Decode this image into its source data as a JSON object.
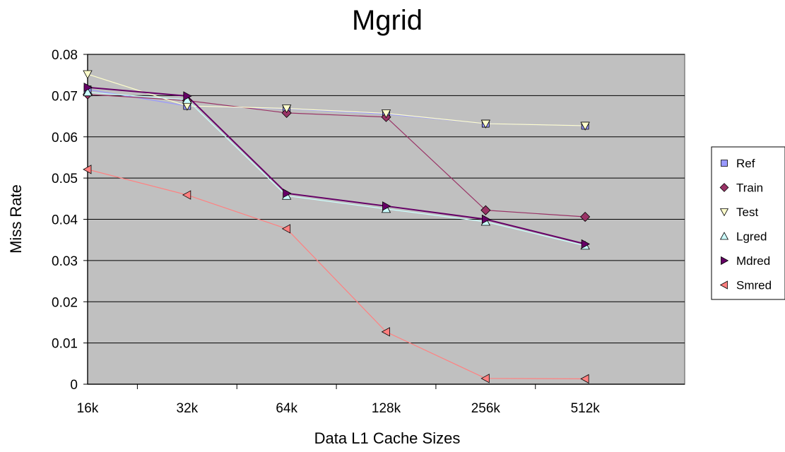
{
  "chart_data": {
    "type": "line",
    "title": "Mgrid",
    "xlabel": "Data L1 Cache Sizes",
    "ylabel": "Miss Rate",
    "categories": [
      "16k",
      "32k",
      "64k",
      "128k",
      "256k",
      "512k"
    ],
    "ylim": [
      0,
      0.08
    ],
    "yticks": [
      "0",
      "0.01",
      "0.02",
      "0.03",
      "0.04",
      "0.05",
      "0.06",
      "0.07",
      "0.08"
    ],
    "grid": true,
    "plot_background": "#c0c0c0",
    "legend_position": "right",
    "series": [
      {
        "name": "Ref",
        "marker": "square",
        "marker_color": "#9999ff",
        "line_color": "#9999ff",
        "values": [
          0.0715,
          0.0675,
          0.0668,
          0.0655,
          0.0632,
          0.0627
        ]
      },
      {
        "name": "Train",
        "marker": "diamond",
        "marker_color": "#993366",
        "line_color": "#993366",
        "values": [
          0.0703,
          0.0688,
          0.0658,
          0.0648,
          0.0422,
          0.0406
        ]
      },
      {
        "name": "Test",
        "marker": "triangle-down",
        "marker_color": "#ffffcc",
        "line_color": "#ffffcc",
        "values": [
          0.0752,
          0.0675,
          0.0669,
          0.0657,
          0.0632,
          0.0627
        ]
      },
      {
        "name": "Lgred",
        "marker": "triangle-up",
        "marker_color": "#ccffff",
        "line_color": "#ccffff",
        "values": [
          0.0708,
          0.069,
          0.0457,
          0.0425,
          0.0394,
          0.0336
        ]
      },
      {
        "name": "Mdred",
        "marker": "triangle-right",
        "marker_color": "#660066",
        "line_color": "#660066",
        "values": [
          0.072,
          0.0699,
          0.0463,
          0.0432,
          0.04,
          0.034
        ]
      },
      {
        "name": "Smred",
        "marker": "triangle-left",
        "marker_color": "#ff8080",
        "line_color": "#ff8080",
        "values": [
          0.0521,
          0.0459,
          0.0377,
          0.0127,
          0.0014,
          0.0013
        ]
      }
    ]
  }
}
